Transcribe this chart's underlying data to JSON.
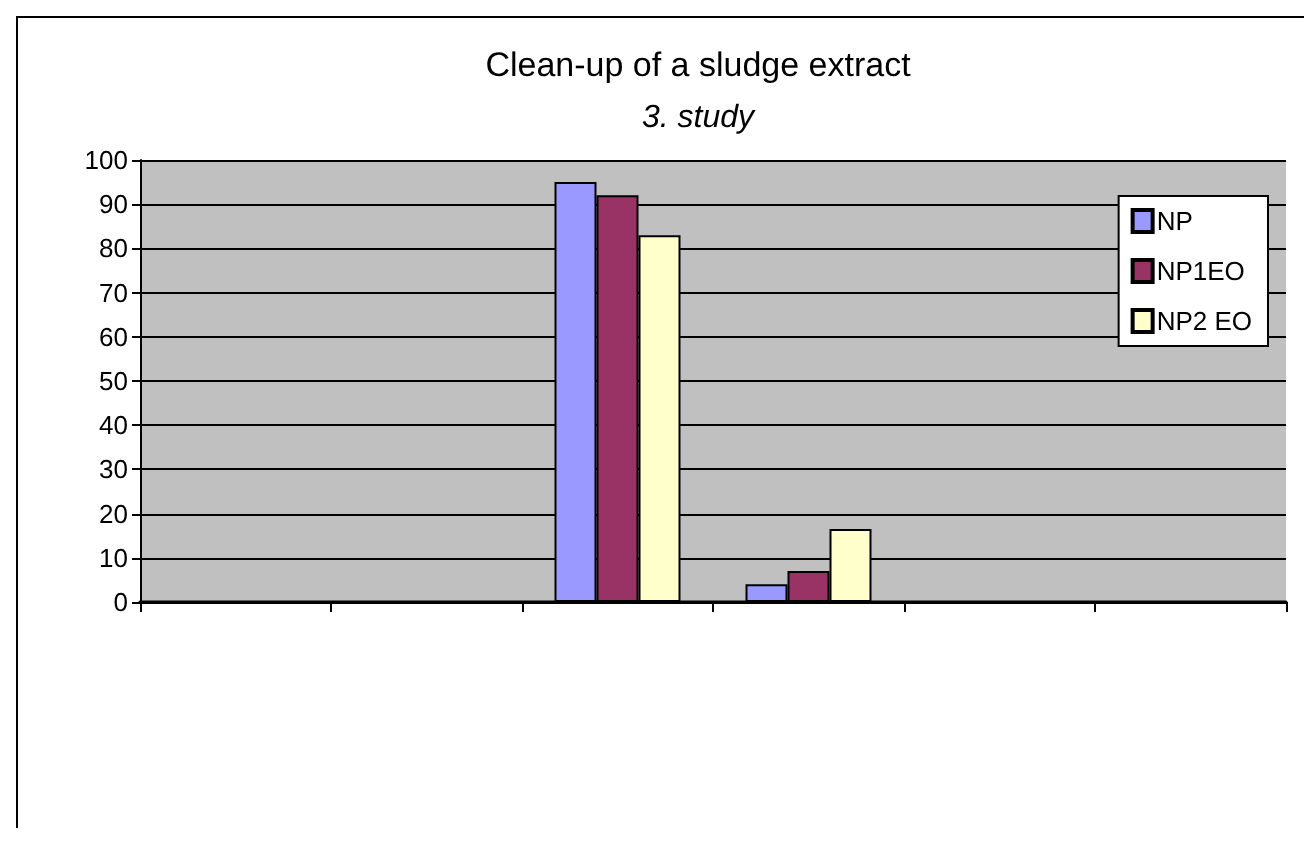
{
  "chart_data": {
    "type": "bar",
    "title": "Clean-up of a sludge extract",
    "subtitle": "3. study",
    "categories": [
      null,
      null,
      null,
      null,
      null,
      null
    ],
    "series": [
      {
        "name": "NP",
        "color": "#9999ff",
        "values": [
          null,
          null,
          95,
          4,
          null,
          null
        ]
      },
      {
        "name": "NP1EO",
        "color": "#993366",
        "values": [
          null,
          null,
          92,
          7,
          null,
          null
        ]
      },
      {
        "name": "NP2 EO",
        "color": "#ffffcc",
        "values": [
          null,
          null,
          83,
          16.5,
          null,
          null
        ]
      }
    ],
    "ylim": [
      0,
      100
    ],
    "yticks": [
      0,
      10,
      20,
      30,
      40,
      50,
      60,
      70,
      80,
      90,
      100
    ],
    "grid": "y",
    "legend": "top right"
  }
}
